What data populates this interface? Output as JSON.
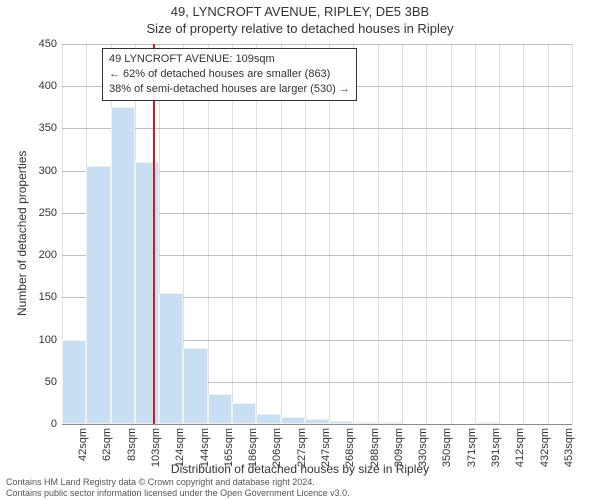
{
  "titles": {
    "main": "49, LYNCROFT AVENUE, RIPLEY, DE5 3BB",
    "sub": "Size of property relative to detached houses in Ripley"
  },
  "chart": {
    "type": "histogram",
    "background_color": "#ffffff",
    "bar_color": "#c8dff3",
    "grid_color": "#808080",
    "marker_color": "#d01b1b",
    "marker_x_value": 109,
    "y_axis": {
      "title": "Number of detached properties",
      "min": 0,
      "max": 450,
      "step": 50,
      "ticks": [
        0,
        50,
        100,
        150,
        200,
        250,
        300,
        350,
        400,
        450
      ]
    },
    "x_axis": {
      "title": "Distribution of detached houses by size in Ripley",
      "tick_labels": [
        "42sqm",
        "62sqm",
        "83sqm",
        "103sqm",
        "124sqm",
        "144sqm",
        "165sqm",
        "186sqm",
        "206sqm",
        "227sqm",
        "247sqm",
        "268sqm",
        "288sqm",
        "309sqm",
        "330sqm",
        "350sqm",
        "371sqm",
        "391sqm",
        "412sqm",
        "432sqm",
        "453sqm"
      ],
      "bin_start": 32,
      "bin_width": 20.5
    },
    "bars": [
      100,
      305,
      375,
      310,
      155,
      90,
      35,
      25,
      12,
      8,
      6,
      4,
      2,
      2,
      0,
      0,
      0,
      1,
      0,
      0,
      0
    ],
    "annotation": {
      "line1": "49 LYNCROFT AVENUE: 109sqm",
      "line2": "← 62% of detached houses are smaller (863)",
      "line3": "38% of semi-detached houses are larger (530) →"
    }
  },
  "footer": {
    "line1": "Contains HM Land Registry data © Crown copyright and database right 2024.",
    "line2": "Contains public sector information licensed under the Open Government Licence v3.0."
  }
}
